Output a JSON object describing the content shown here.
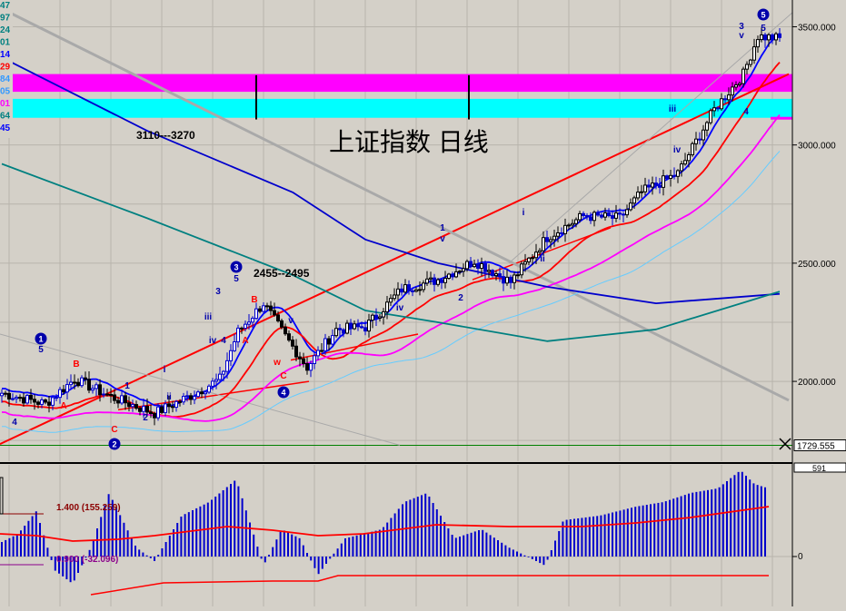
{
  "chart_data": [
    {
      "type": "candlestick",
      "title": "上证指数  日线",
      "y_tick_labels": [
        "3500.000",
        "3000.000",
        "2500.000",
        "2000.000"
      ],
      "y_ticks": [
        3500,
        3000,
        2500,
        2000
      ],
      "ylim": [
        1700,
        3640
      ],
      "current_price_label": "1729.555",
      "current_price": 1729.555,
      "left_edge_labels": [
        "47",
        "97",
        "24",
        "01",
        "14",
        "29",
        "84",
        "05",
        "01",
        "64",
        "45"
      ],
      "left_edge_colors": [
        "#008080",
        "#008080",
        "#008080",
        "#008080",
        "#0000ff",
        "#ff0000",
        "#3399ff",
        "#3399ff",
        "#ff00ff",
        "#008080",
        "#0000ff"
      ],
      "zones": [
        {
          "from": 3225,
          "to": 3300,
          "color": "#ff00ff"
        },
        {
          "from": 3115,
          "to": 3195,
          "color": "#00ffff"
        }
      ],
      "range_annotations": [
        "3110---3270",
        "2455--2495"
      ],
      "wave_circled_labels": [
        "1",
        "2",
        "3",
        "4",
        "5"
      ],
      "wave_labels": [
        "A",
        "B",
        "C",
        "i",
        "ii",
        "iii",
        "iv",
        "v",
        "1",
        "2",
        "3",
        "4",
        "5"
      ],
      "wave_label_count": 56,
      "candle_count": 215,
      "candles_close_start": 1940,
      "candles_close_end": 3450,
      "moving_averages": [
        {
          "color": "#0000ff",
          "role": "fast"
        },
        {
          "color": "#ff0000",
          "role": "medium"
        },
        {
          "color": "#ff00ff",
          "role": "slow"
        },
        {
          "color": "#66ccff",
          "role": "slower"
        },
        {
          "color": "#0000cc",
          "role": "long"
        },
        {
          "color": "#008080",
          "role": "longest"
        }
      ],
      "trend_lines": [
        "red support",
        "gray resistance",
        "gray parallel channel"
      ],
      "grid": true
    },
    {
      "type": "bar",
      "name": "MACD-style oscillator",
      "y_tick_labels": [
        "0"
      ],
      "top_right_label": "591",
      "annotations": [
        "1.400 (155.259)",
        "0.900 (-32.096)"
      ],
      "bar_color": "#0000cc",
      "line_colors": [
        "#ff0000",
        "#ff0000"
      ],
      "grid": true
    }
  ]
}
